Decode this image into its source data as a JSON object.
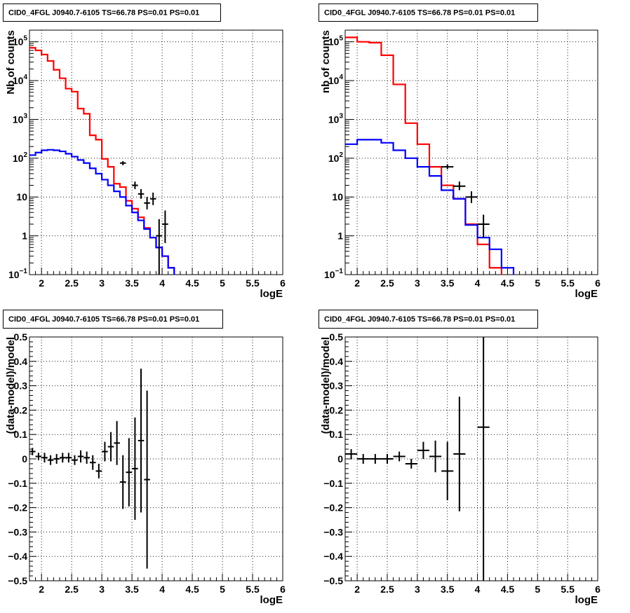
{
  "chart_data": [
    {
      "type": "step-histogram",
      "title": "CID0_4FGL J0940.7-6105 TS=66.78 PS=0.01 PS=0.01",
      "xlabel": "logE",
      "ylabel": "Nb of counts",
      "xlim": [
        1.8,
        6.0
      ],
      "ylim": [
        0.1,
        200000
      ],
      "log_y": true,
      "grid": true,
      "x_ticks": [
        "2",
        "2.5",
        "3",
        "3.5",
        "4",
        "4.5",
        "5",
        "5.5",
        "6"
      ],
      "y_ticks": [
        "10^-1",
        "1",
        "10",
        "10^2",
        "10^3",
        "10^4",
        "10^5"
      ],
      "bin_edges": [
        1.8,
        1.9,
        2.0,
        2.1,
        2.2,
        2.3,
        2.4,
        2.5,
        2.6,
        2.7,
        2.8,
        2.9,
        3.0,
        3.1,
        3.2,
        3.3,
        3.4,
        3.5,
        3.6,
        3.7,
        3.8,
        3.9,
        4.0,
        4.1,
        4.2,
        4.3,
        4.4,
        4.5,
        4.6,
        4.7,
        4.8,
        4.9,
        5.0,
        5.1,
        5.2,
        5.3,
        5.4,
        5.5,
        5.6,
        5.7,
        5.8,
        5.9,
        6.0
      ],
      "series": [
        {
          "color": "#ff0000",
          "kind": "total-model",
          "values": [
            70000,
            60000,
            47000,
            32000,
            19000,
            11500,
            6200,
            5200,
            1900,
            1400,
            390,
            300,
            96,
            60,
            22,
            18,
            8,
            5,
            3,
            1.6,
            0.9,
            0.5,
            0.3,
            0.15,
            0.09,
            0.09,
            0.09,
            0.09,
            0.09,
            0.09,
            0.09,
            0.09,
            0.09,
            0.09,
            0.09,
            0.09,
            0.09,
            0.09,
            0.09,
            0.09,
            0.09,
            0.09
          ]
        },
        {
          "color": "#0000ff",
          "kind": "source-model",
          "values": [
            120,
            140,
            160,
            165,
            160,
            150,
            130,
            110,
            90,
            75,
            55,
            40,
            28,
            20,
            14,
            10,
            6,
            4,
            2.5,
            1.5,
            0.9,
            0.5,
            0.3,
            0.15,
            0.09,
            0.09,
            0.09,
            0.09,
            0.09,
            0.09,
            0.09,
            0.09,
            0.09,
            0.09,
            0.09,
            0.09,
            0.09,
            0.09,
            0.09,
            0.09,
            0.09,
            0.09
          ]
        }
      ],
      "data_points": [
        {
          "x": 3.35,
          "y": 75,
          "xerr": 0.05,
          "ylo": 66,
          "yhi": 84
        },
        {
          "x": 3.55,
          "y": 20,
          "xerr": 0.05,
          "ylo": 16,
          "yhi": 25
        },
        {
          "x": 3.65,
          "y": 12,
          "xerr": 0.05,
          "ylo": 9,
          "yhi": 16
        },
        {
          "x": 3.75,
          "y": 7,
          "xerr": 0.05,
          "ylo": 4.8,
          "yhi": 10
        },
        {
          "x": 3.85,
          "y": 9,
          "xerr": 0.05,
          "ylo": 6.2,
          "yhi": 13
        },
        {
          "x": 3.95,
          "y": 1,
          "xerr": 0.05,
          "ylo": 0.1,
          "yhi": 2.7
        },
        {
          "x": 4.05,
          "y": 2,
          "xerr": 0.05,
          "ylo": 0.65,
          "yhi": 4.5
        }
      ]
    },
    {
      "type": "step-histogram",
      "title": "CID0_4FGL J0940.7-6105 TS=66.78 PS=0.01 PS=0.01",
      "xlabel": "logE",
      "ylabel": "nb of counts",
      "xlim": [
        1.8,
        6.0
      ],
      "ylim": [
        0.1,
        200000
      ],
      "log_y": true,
      "grid": true,
      "x_ticks": [
        "2",
        "2.5",
        "3",
        "3.5",
        "4",
        "4.5",
        "5",
        "5.5",
        "6"
      ],
      "y_ticks": [
        "10^-1",
        "1",
        "10",
        "10^2",
        "10^3",
        "10^4",
        "10^5"
      ],
      "bin_edges": [
        1.8,
        2.0,
        2.2,
        2.4,
        2.6,
        2.8,
        3.0,
        3.2,
        3.4,
        3.6,
        3.8,
        4.0,
        4.2,
        4.4,
        4.6,
        4.8,
        5.0,
        5.2,
        5.4,
        5.6,
        5.8,
        6.0
      ],
      "series": [
        {
          "color": "#ff0000",
          "kind": "total-model",
          "values": [
            130000,
            100000,
            95000,
            45000,
            8000,
            800,
            230,
            60,
            20,
            9,
            2,
            0.6,
            0.15,
            0.09,
            0.09,
            0.09,
            0.09,
            0.09,
            0.09,
            0.09,
            0.09
          ]
        },
        {
          "color": "#0000ff",
          "kind": "source-model",
          "values": [
            230,
            300,
            300,
            250,
            160,
            100,
            60,
            35,
            15,
            9,
            1.9,
            0.9,
            0.45,
            0.15,
            0.09,
            0.09,
            0.09,
            0.09,
            0.09,
            0.09,
            0.09
          ]
        }
      ],
      "data_points": [
        {
          "x": 3.5,
          "y": 60,
          "xerr": 0.1,
          "ylo": 52,
          "yhi": 70
        },
        {
          "x": 3.7,
          "y": 19,
          "xerr": 0.1,
          "ylo": 15,
          "yhi": 25
        },
        {
          "x": 3.9,
          "y": 10,
          "xerr": 0.1,
          "ylo": 7,
          "yhi": 14
        },
        {
          "x": 4.1,
          "y": 2,
          "xerr": 0.1,
          "ylo": 0.9,
          "yhi": 3.5
        }
      ]
    },
    {
      "type": "scatter-errorbar",
      "title": "CID0_4FGL J0940.7-6105 TS=66.78 PS=0.01 PS=0.01",
      "xlabel": "logE",
      "ylabel": "(data-model)/model",
      "xlim": [
        1.8,
        6.0
      ],
      "ylim": [
        -0.5,
        0.5
      ],
      "grid": true,
      "x_ticks": [
        "2",
        "2.5",
        "3",
        "3.5",
        "4",
        "4.5",
        "5",
        "5.5",
        "6"
      ],
      "y_ticks": [
        "-0.5",
        "-0.4",
        "-0.3",
        "-0.2",
        "-0.1",
        "0",
        "0.1",
        "0.2",
        "0.3",
        "0.4",
        "0.5"
      ],
      "data_points": [
        {
          "x": 1.85,
          "y": 0.03,
          "xerr": 0.05,
          "yerr": 0.015
        },
        {
          "x": 1.95,
          "y": 0.01,
          "xerr": 0.05,
          "yerr": 0.015
        },
        {
          "x": 2.05,
          "y": 0.005,
          "xerr": 0.05,
          "yerr": 0.02
        },
        {
          "x": 2.15,
          "y": -0.005,
          "xerr": 0.05,
          "yerr": 0.02
        },
        {
          "x": 2.25,
          "y": 0.0,
          "xerr": 0.05,
          "yerr": 0.02
        },
        {
          "x": 2.35,
          "y": 0.005,
          "xerr": 0.05,
          "yerr": 0.02
        },
        {
          "x": 2.45,
          "y": 0.005,
          "xerr": 0.05,
          "yerr": 0.02
        },
        {
          "x": 2.55,
          "y": -0.005,
          "xerr": 0.05,
          "yerr": 0.02
        },
        {
          "x": 2.65,
          "y": 0.01,
          "xerr": 0.05,
          "yerr": 0.025
        },
        {
          "x": 2.75,
          "y": 0.005,
          "xerr": 0.05,
          "yerr": 0.025
        },
        {
          "x": 2.85,
          "y": -0.015,
          "xerr": 0.05,
          "yerr": 0.03
        },
        {
          "x": 2.95,
          "y": -0.05,
          "xerr": 0.05,
          "yerr": 0.03
        },
        {
          "x": 3.05,
          "y": 0.03,
          "xerr": 0.05,
          "yerr": 0.04
        },
        {
          "x": 3.15,
          "y": 0.05,
          "xerr": 0.05,
          "yerr": 0.06
        },
        {
          "x": 3.25,
          "y": 0.065,
          "xerr": 0.05,
          "yerr": 0.09
        },
        {
          "x": 3.35,
          "y": -0.095,
          "xerr": 0.05,
          "yerr": 0.11
        },
        {
          "x": 3.45,
          "y": -0.055,
          "xerr": 0.05,
          "yerr": 0.14
        },
        {
          "x": 3.55,
          "y": -0.04,
          "xerr": 0.05,
          "yerr": 0.21
        },
        {
          "x": 3.65,
          "y": 0.075,
          "xerr": 0.05,
          "yerr": 0.295
        },
        {
          "x": 3.75,
          "y": -0.085,
          "xerr": 0.05,
          "yerr": 0.365
        }
      ]
    },
    {
      "type": "scatter-errorbar",
      "title": "CID0_4FGL J0940.7-6105 TS=66.78 PS=0.01 PS=0.01",
      "xlabel": "logE",
      "ylabel": "(data-model)/model",
      "xlim": [
        1.8,
        6.0
      ],
      "ylim": [
        -0.5,
        0.5
      ],
      "grid": true,
      "x_ticks": [
        "2",
        "2.5",
        "3",
        "3.5",
        "4",
        "4.5",
        "5",
        "5.5",
        "6"
      ],
      "y_ticks": [
        "-0.5",
        "-0.4",
        "-0.3",
        "-0.2",
        "-0.1",
        "0",
        "0.1",
        "0.2",
        "0.3",
        "0.4",
        "0.5"
      ],
      "data_points": [
        {
          "x": 1.9,
          "y": 0.02,
          "xerr": 0.1,
          "yerr": 0.02
        },
        {
          "x": 2.1,
          "y": 0.0,
          "xerr": 0.1,
          "yerr": 0.02
        },
        {
          "x": 2.3,
          "y": 0.0,
          "xerr": 0.1,
          "yerr": 0.02
        },
        {
          "x": 2.5,
          "y": 0.0,
          "xerr": 0.1,
          "yerr": 0.02
        },
        {
          "x": 2.7,
          "y": 0.01,
          "xerr": 0.1,
          "yerr": 0.02
        },
        {
          "x": 2.9,
          "y": -0.02,
          "xerr": 0.1,
          "yerr": 0.02
        },
        {
          "x": 3.1,
          "y": 0.035,
          "xerr": 0.1,
          "yerr": 0.035
        },
        {
          "x": 3.3,
          "y": 0.01,
          "xerr": 0.1,
          "yerr": 0.065
        },
        {
          "x": 3.5,
          "y": -0.05,
          "xerr": 0.1,
          "yerr": 0.12
        },
        {
          "x": 3.7,
          "y": 0.02,
          "xerr": 0.1,
          "yerr": 0.235
        },
        {
          "x": 4.1,
          "y": 0.13,
          "xerr": 0.1,
          "yerr": 0.7
        }
      ]
    }
  ]
}
